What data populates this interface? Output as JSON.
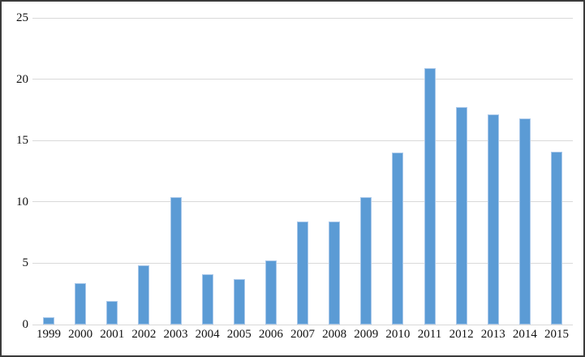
{
  "chart_data": {
    "type": "bar",
    "title": "",
    "xlabel": "",
    "ylabel": "",
    "categories": [
      "1999",
      "2000",
      "2001",
      "2002",
      "2003",
      "2004",
      "2005",
      "2006",
      "2007",
      "2008",
      "2009",
      "2010",
      "2011",
      "2012",
      "2013",
      "2014",
      "2015"
    ],
    "values": [
      0.6,
      3.4,
      1.9,
      4.8,
      10.4,
      4.1,
      3.7,
      5.2,
      8.4,
      8.4,
      10.4,
      14.0,
      20.9,
      17.7,
      17.1,
      16.8,
      14.1
    ],
    "ylim": [
      0,
      25
    ],
    "yticks": [
      0,
      5,
      10,
      15,
      20,
      25
    ],
    "grid": true,
    "legend": false,
    "colors": {
      "bar_fill": "#5B9BD5",
      "bar_border": "#A9C8EA",
      "gridline": "#D9D9D9",
      "tick_label": "#111111",
      "frame_border": "#3B3B3B",
      "background": "#FFFFFF"
    }
  }
}
